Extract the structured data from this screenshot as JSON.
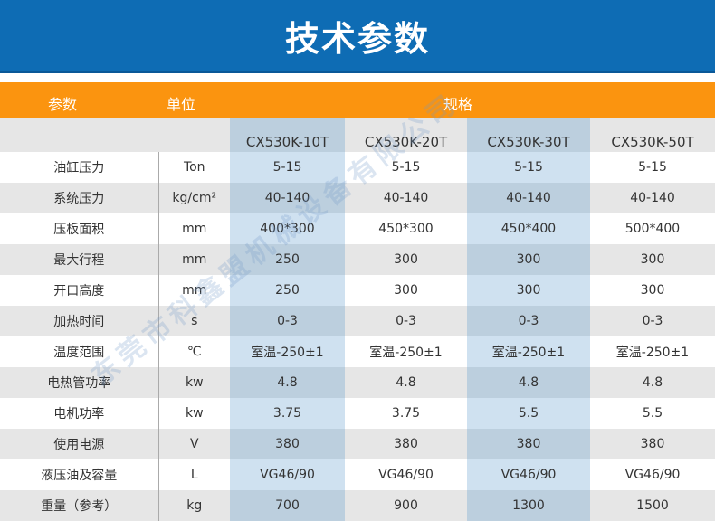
{
  "title": "技术参数",
  "header": {
    "param": "参数",
    "unit": "单位",
    "spec": "规格"
  },
  "models": [
    "CX530K-10T",
    "CX530K-20T",
    "CX530K-30T",
    "CX530K-50T"
  ],
  "rows": [
    {
      "param": "油缸压力",
      "unit": "Ton",
      "values": [
        "5-15",
        "5-15",
        "5-15",
        "5-15"
      ]
    },
    {
      "param": "系统压力",
      "unit": "kg/cm²",
      "values": [
        "40-140",
        "40-140",
        "40-140",
        "40-140"
      ]
    },
    {
      "param": "压板面积",
      "unit": "mm",
      "values": [
        "400*300",
        "450*300",
        "450*400",
        "500*400"
      ]
    },
    {
      "param": "最大行程",
      "unit": "mm",
      "values": [
        "250",
        "300",
        "300",
        "300"
      ]
    },
    {
      "param": "开口高度",
      "unit": "mm",
      "values": [
        "250",
        "300",
        "300",
        "300"
      ]
    },
    {
      "param": "加热时间",
      "unit": "s",
      "values": [
        "0-3",
        "0-3",
        "0-3",
        "0-3"
      ]
    },
    {
      "param": "温度范围",
      "unit": "℃",
      "values": [
        "室温-250±1",
        "室温-250±1",
        "室温-250±1",
        "室温-250±1"
      ]
    },
    {
      "param": "电热管功率",
      "unit": "kw",
      "values": [
        "4.8",
        "4.8",
        "4.8",
        "4.8"
      ]
    },
    {
      "param": "电机功率",
      "unit": "kw",
      "values": [
        "3.75",
        "3.75",
        "5.5",
        "5.5"
      ]
    },
    {
      "param": "使用电源",
      "unit": "V",
      "values": [
        "380",
        "380",
        "380",
        "380"
      ]
    },
    {
      "param": "液压油及容量",
      "unit": "L",
      "values": [
        "VG46/90",
        "VG46/90",
        "VG46/90",
        "VG46/90"
      ]
    },
    {
      "param": "重量（参考）",
      "unit": "kg",
      "values": [
        "700",
        "900",
        "1300",
        "1500"
      ]
    }
  ],
  "watermark": "东莞市科鑫盟机械设备有限公司",
  "colors": {
    "title_bg": "#0e6cb4",
    "header_bg": "#fb940f",
    "highlight": "#cfe1f0"
  }
}
